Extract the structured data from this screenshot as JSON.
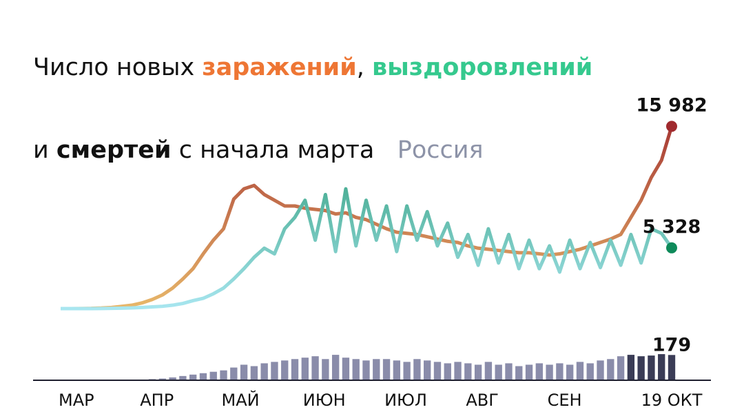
{
  "header": {
    "line1": [
      "Число новых ",
      "заражений",
      ", ",
      "выздоровлений"
    ],
    "line2": [
      "и ",
      "смертей",
      " с начала марта"
    ],
    "subtitle": "Россия"
  },
  "chart_data": [
    {
      "type": "line",
      "categories": [
        "МАР",
        null,
        null,
        null,
        null,
        null,
        null,
        null,
        "АПР",
        null,
        null,
        null,
        null,
        null,
        null,
        null,
        "МАЙ",
        null,
        null,
        null,
        null,
        null,
        null,
        null,
        "ИЮН",
        null,
        null,
        null,
        null,
        null,
        null,
        null,
        "ИЮЛ",
        null,
        null,
        null,
        null,
        null,
        null,
        null,
        "АВГ",
        null,
        null,
        null,
        null,
        null,
        null,
        null,
        "СЕН",
        null,
        null,
        null,
        null,
        null,
        null,
        null,
        null,
        null,
        null,
        null,
        "19 ОКТ"
      ],
      "ylim": [
        0,
        18000
      ],
      "series": [
        {
          "name": "заражений",
          "color": [
            "#e8b86a",
            "#a02a2e"
          ],
          "values": [
            0,
            0,
            10,
            20,
            50,
            100,
            200,
            300,
            500,
            800,
            1200,
            1800,
            2600,
            3500,
            4800,
            6000,
            7000,
            9600,
            10500,
            10800,
            10000,
            9500,
            9000,
            9000,
            8800,
            8700,
            8600,
            8300,
            8400,
            8000,
            7800,
            7400,
            7000,
            6700,
            6600,
            6500,
            6300,
            6100,
            5900,
            5800,
            5500,
            5300,
            5200,
            5100,
            5000,
            4900,
            4900,
            4800,
            4700,
            4800,
            5000,
            5200,
            5500,
            5800,
            6100,
            6500,
            8000,
            9500,
            11500,
            13000,
            15982
          ],
          "value_labels": [
            null,
            null,
            null,
            null,
            null,
            null,
            null,
            null,
            null,
            null,
            null,
            null,
            null,
            null,
            null,
            null,
            null,
            null,
            null,
            null,
            null,
            null,
            null,
            null,
            null,
            null,
            null,
            null,
            null,
            null,
            null,
            null,
            null,
            null,
            null,
            null,
            null,
            null,
            null,
            null,
            null,
            null,
            null,
            null,
            null,
            null,
            null,
            null,
            null,
            null,
            null,
            null,
            null,
            null,
            null,
            null,
            null,
            null,
            null,
            null,
            "15 982"
          ]
        },
        {
          "name": "выздоровлений",
          "color": [
            "#a8e6f0",
            "#0e8a5a"
          ],
          "values": [
            0,
            0,
            0,
            0,
            10,
            20,
            40,
            60,
            100,
            150,
            200,
            300,
            450,
            700,
            900,
            1300,
            1800,
            2600,
            3500,
            4500,
            5300,
            4800,
            7000,
            8000,
            9500,
            6000,
            10000,
            5000,
            10500,
            5500,
            9500,
            6000,
            9000,
            5000,
            9000,
            6000,
            8500,
            5500,
            7500,
            4500,
            6500,
            3800,
            7000,
            4000,
            6500,
            3500,
            6000,
            3500,
            5500,
            3200,
            6000,
            3500,
            5800,
            3600,
            6000,
            3800,
            6500,
            4000,
            7000,
            6600,
            5328
          ],
          "value_labels": [
            null,
            null,
            null,
            null,
            null,
            null,
            null,
            null,
            null,
            null,
            null,
            null,
            null,
            null,
            null,
            null,
            null,
            null,
            null,
            null,
            null,
            null,
            null,
            null,
            null,
            null,
            null,
            null,
            null,
            null,
            null,
            null,
            null,
            null,
            null,
            null,
            null,
            null,
            null,
            null,
            null,
            null,
            null,
            null,
            null,
            null,
            null,
            null,
            null,
            null,
            null,
            null,
            null,
            null,
            null,
            null,
            null,
            null,
            null,
            null,
            "5 328"
          ]
        }
      ]
    },
    {
      "type": "bar",
      "name": "смертей",
      "color": "#8a8caa",
      "ylim": [
        0,
        200
      ],
      "values": [
        0,
        0,
        0,
        0,
        0,
        1,
        2,
        4,
        5,
        8,
        12,
        20,
        30,
        40,
        50,
        60,
        70,
        90,
        110,
        100,
        120,
        130,
        140,
        150,
        160,
        170,
        150,
        180,
        160,
        150,
        140,
        150,
        150,
        140,
        130,
        150,
        140,
        130,
        120,
        130,
        120,
        110,
        130,
        110,
        120,
        100,
        110,
        120,
        110,
        120,
        110,
        130,
        120,
        140,
        150,
        170,
        180,
        170,
        175,
        185,
        179
      ],
      "value_labels": [
        null,
        null,
        null,
        null,
        null,
        null,
        null,
        null,
        null,
        null,
        null,
        null,
        null,
        null,
        null,
        null,
        null,
        null,
        null,
        null,
        null,
        null,
        null,
        null,
        null,
        null,
        null,
        null,
        null,
        null,
        null,
        null,
        null,
        null,
        null,
        null,
        null,
        null,
        null,
        null,
        null,
        null,
        null,
        null,
        null,
        null,
        null,
        null,
        null,
        null,
        null,
        null,
        null,
        null,
        null,
        null,
        null,
        null,
        null,
        null,
        "179"
      ]
    }
  ]
}
